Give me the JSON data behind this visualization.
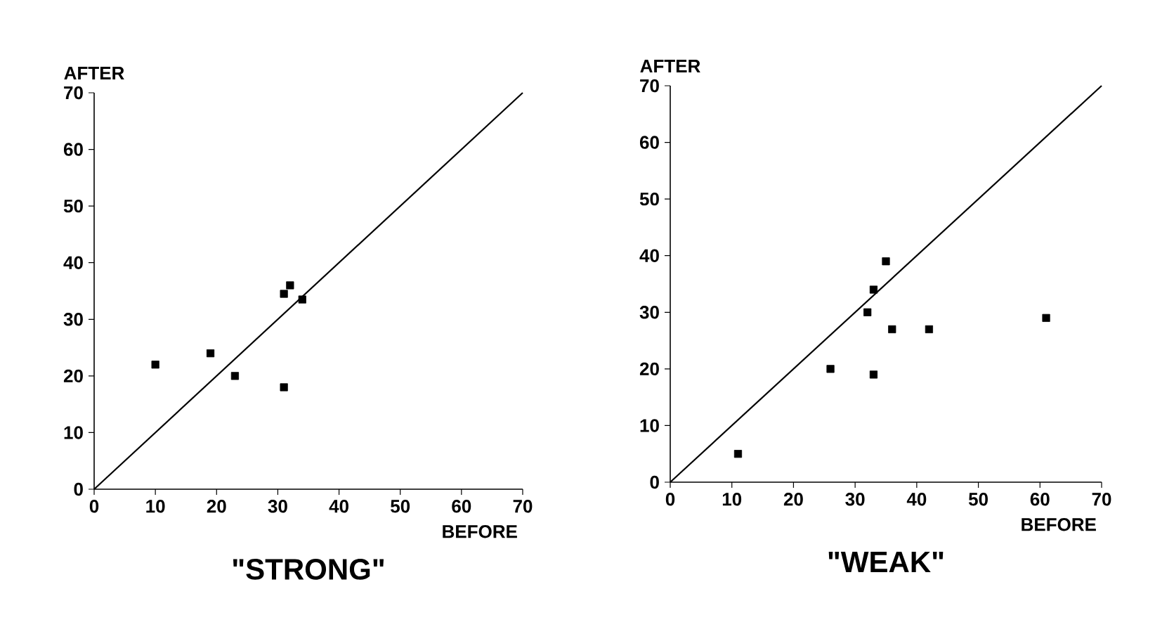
{
  "chart_data": [
    {
      "type": "scatter",
      "title": "\"STRONG\"",
      "xlabel": "BEFORE",
      "ylabel": "AFTER",
      "xlim": [
        0,
        70
      ],
      "ylim": [
        0,
        70
      ],
      "xticks": [
        0,
        10,
        20,
        30,
        40,
        50,
        60,
        70
      ],
      "yticks": [
        0,
        10,
        20,
        30,
        40,
        50,
        60,
        70
      ],
      "marker": "square",
      "series": [
        {
          "color": "#000000",
          "x": [
            10,
            19,
            23,
            31,
            32,
            34,
            31
          ],
          "values": [
            22,
            24,
            20,
            34.5,
            36,
            33.5,
            18
          ]
        },
        {
          "type": "line",
          "color": "#000000",
          "marker": "none",
          "x": [
            0,
            70
          ],
          "values": [
            0,
            70
          ]
        }
      ]
    },
    {
      "type": "scatter",
      "title": "\"WEAK\"",
      "xlabel": "BEFORE",
      "ylabel": "AFTER",
      "xlim": [
        0,
        70
      ],
      "ylim": [
        0,
        70
      ],
      "xticks": [
        0,
        10,
        20,
        30,
        40,
        50,
        60,
        70
      ],
      "yticks": [
        0,
        10,
        20,
        30,
        40,
        50,
        60,
        70
      ],
      "marker": "square",
      "series": [
        {
          "color": "#000000",
          "x": [
            11,
            26,
            32,
            33,
            35,
            36,
            42,
            33,
            61
          ],
          "values": [
            5,
            20,
            30,
            34,
            39,
            27,
            27,
            19,
            29
          ]
        },
        {
          "type": "line",
          "color": "#000000",
          "marker": "none",
          "x": [
            0,
            70
          ],
          "values": [
            0,
            70
          ]
        }
      ]
    }
  ]
}
